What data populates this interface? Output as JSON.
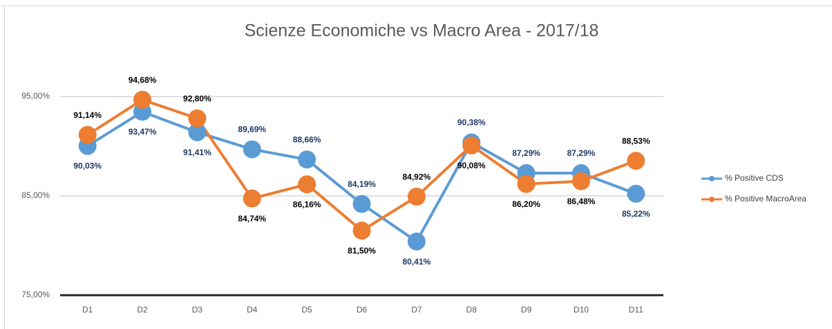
{
  "chart_data": {
    "type": "line",
    "title": "Scienze Economiche vs Macro Area - 2017/18",
    "categories": [
      "D1",
      "D2",
      "D3",
      "D4",
      "D5",
      "D6",
      "D7",
      "D8",
      "D9",
      "D10",
      "D11"
    ],
    "series": [
      {
        "name": "% Positive CDS",
        "color": "#5b9bd5",
        "label_color": "#1f3864",
        "values": [
          90.03,
          93.47,
          91.41,
          89.69,
          88.66,
          84.19,
          80.41,
          90.38,
          87.29,
          87.29,
          85.22
        ],
        "value_labels": [
          "90,03%",
          "93,47%",
          "91,41%",
          "89,69%",
          "88,66%",
          "84,19%",
          "80,41%",
          "90,38%",
          "87,29%",
          "87,29%",
          "85,22%"
        ]
      },
      {
        "name": "% Positive MacroArea",
        "color": "#ed7d31",
        "label_color": "#000000",
        "values": [
          91.14,
          94.68,
          92.8,
          84.74,
          86.16,
          81.5,
          84.92,
          90.08,
          86.2,
          86.48,
          88.53
        ],
        "value_labels": [
          "91,14%",
          "94,68%",
          "92,80%",
          "84,74%",
          "86,16%",
          "81,50%",
          "84,92%",
          "90,08%",
          "86,20%",
          "86,48%",
          "88,53%"
        ]
      }
    ],
    "ylim": [
      75,
      100
    ],
    "yticks": [
      {
        "value": 75,
        "label": "75,00%"
      },
      {
        "value": 85,
        "label": "85,00%"
      },
      {
        "value": 95,
        "label": "95,00%"
      }
    ],
    "grid": true,
    "legend": "right"
  }
}
